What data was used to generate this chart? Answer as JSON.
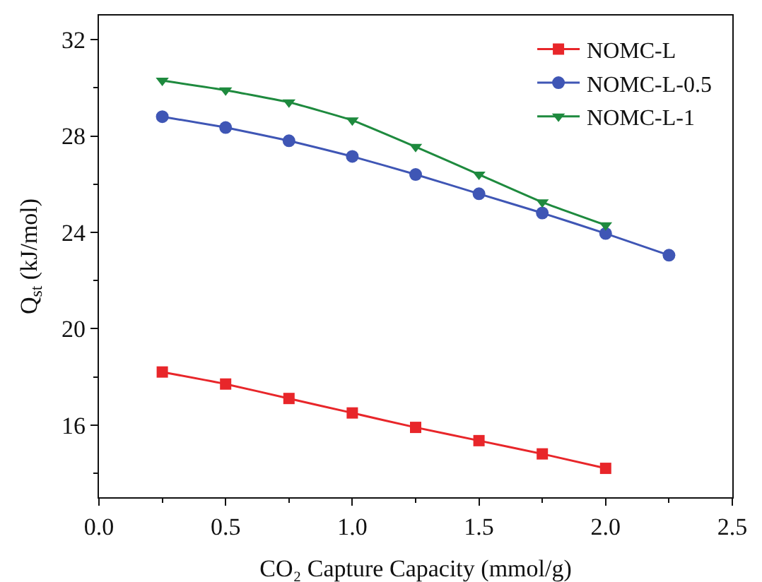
{
  "chart_data": {
    "type": "line",
    "xlabel": "CO₂ Capture Capacity (mmol/g)",
    "ylabel": "Q$_{st}$ (kJ/mol)",
    "xlim": [
      0,
      2.5
    ],
    "xticks": [
      {
        "value": 0,
        "label": "0.0"
      },
      0.5,
      {
        "value": 1,
        "label": "1.0"
      },
      1.5,
      {
        "value": 2,
        "label": "2.0"
      },
      2.5
    ],
    "ylim": [
      13,
      33
    ],
    "yticks": [
      16,
      20,
      24,
      28,
      32
    ],
    "grid": false,
    "legend": "top right",
    "line_style": "solid",
    "series": [
      {
        "name": "NOMC-L",
        "color": "#e8262a",
        "marker": "square",
        "x": [
          0.25,
          0.5,
          0.75,
          1,
          1.25,
          1.5,
          1.75,
          2
        ],
        "values": [
          18.2,
          17.7,
          17.1,
          16.5,
          15.9,
          15.35,
          14.8,
          14.2
        ]
      },
      {
        "name": "NOMC-L-0.5",
        "color": "#3f56b5",
        "marker": "circle",
        "x": [
          0.25,
          0.5,
          0.75,
          1,
          1.25,
          1.5,
          1.75,
          2,
          2.25
        ],
        "values": [
          28.8,
          28.35,
          27.8,
          27.15,
          26.4,
          25.6,
          24.8,
          23.95,
          23.05
        ]
      },
      {
        "name": "NOMC-L-1",
        "color": "#1e8a3e",
        "marker": "triangle",
        "x": [
          0.25,
          0.5,
          0.75,
          1,
          1.25,
          1.5,
          1.75,
          2
        ],
        "values": [
          30.3,
          29.9,
          29.4,
          28.65,
          27.55,
          26.4,
          25.25,
          24.3
        ]
      }
    ]
  }
}
